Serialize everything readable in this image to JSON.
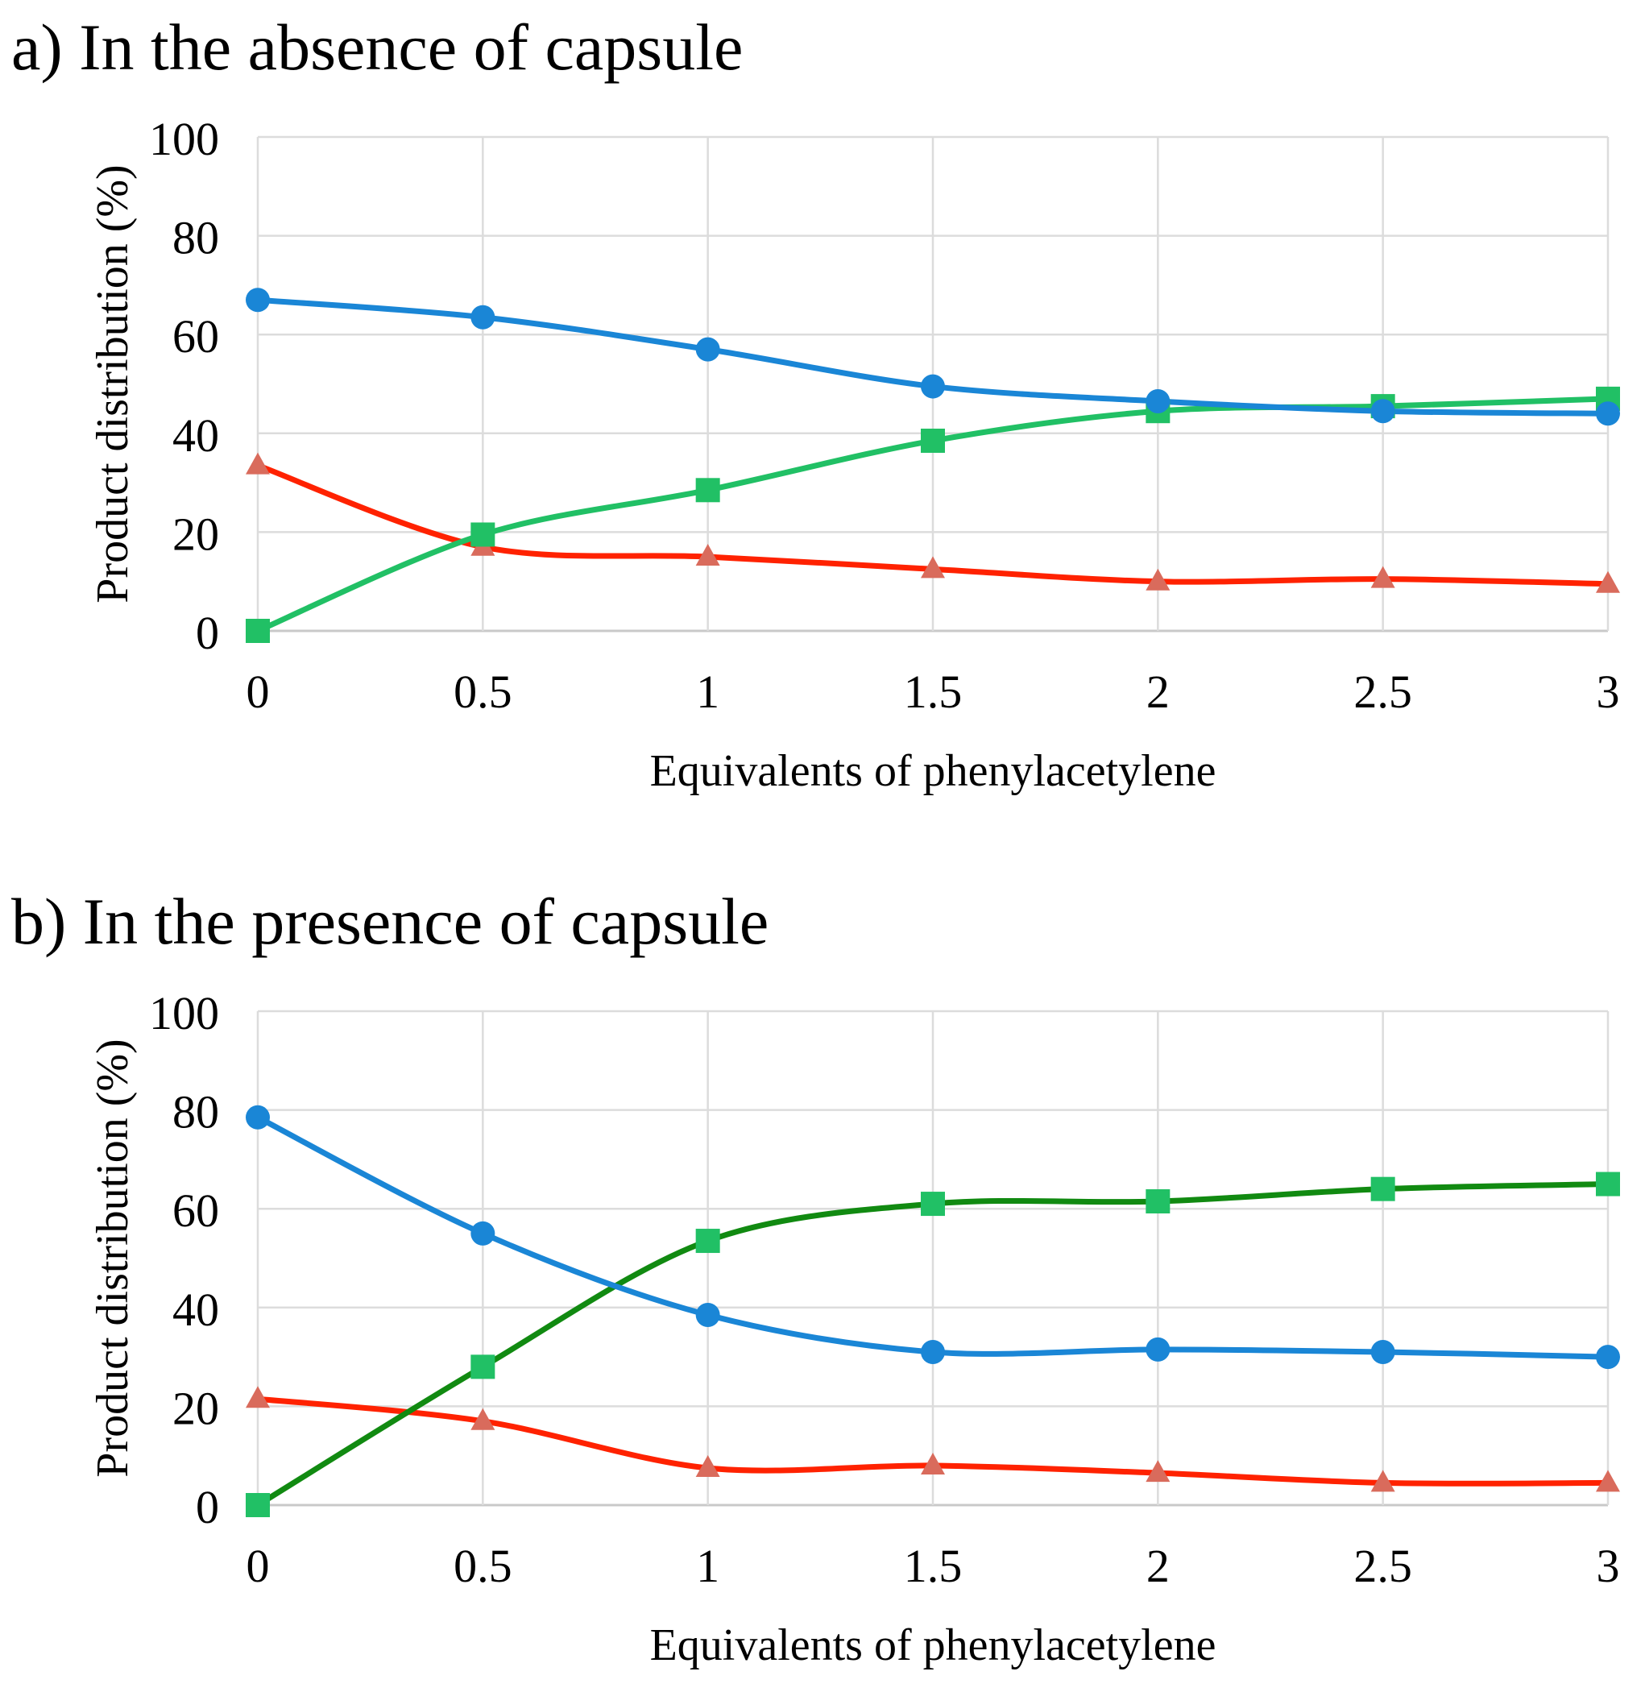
{
  "chart_data": [
    {
      "type": "line",
      "title": "a) In the absence of capsule",
      "xlabel": "Equivalents of phenylacetylene",
      "ylabel": "Product distribution (%)",
      "x": [
        0,
        0.5,
        1,
        1.5,
        2,
        2.5,
        3
      ],
      "x_tick_labels": [
        "0",
        "0.5",
        "1",
        "1.5",
        "2",
        "2.5",
        "3"
      ],
      "y_ticks": [
        0,
        20,
        40,
        60,
        80,
        100
      ],
      "y_tick_labels": [
        "0",
        "20",
        "40",
        "60",
        "80",
        "100"
      ],
      "xlim": [
        0,
        3
      ],
      "ylim": [
        0,
        100
      ],
      "grid": true,
      "smooth": true,
      "series": [
        {
          "name": "blue circles",
          "color": "#1a86d6",
          "marker": "circle",
          "marker_color": "#1a86d6",
          "values": [
            67,
            63.5,
            57,
            49.5,
            46.5,
            44.5,
            44
          ]
        },
        {
          "name": "green squares",
          "color": "#21c065",
          "marker": "square",
          "marker_color": "#21c065",
          "values": [
            0,
            19.5,
            28.5,
            38.5,
            44.5,
            45.5,
            47
          ]
        },
        {
          "name": "red triangles",
          "color": "#ff2200",
          "marker": "triangle",
          "marker_color": "#d96b5c",
          "values": [
            33.5,
            17,
            15,
            12.5,
            10,
            10.5,
            9.5
          ]
        }
      ]
    },
    {
      "type": "line",
      "title": "b) In the presence of capsule",
      "xlabel": "Equivalents of phenylacetylene",
      "ylabel": "Product distribution (%)",
      "x": [
        0,
        0.5,
        1,
        1.5,
        2,
        2.5,
        3
      ],
      "x_tick_labels": [
        "0",
        "0.5",
        "1",
        "1.5",
        "2",
        "2.5",
        "3"
      ],
      "y_ticks": [
        0,
        20,
        40,
        60,
        80,
        100
      ],
      "y_tick_labels": [
        "0",
        "20",
        "40",
        "60",
        "80",
        "100"
      ],
      "xlim": [
        0,
        3
      ],
      "ylim": [
        0,
        100
      ],
      "grid": true,
      "smooth": true,
      "series": [
        {
          "name": "blue circles",
          "color": "#1a86d6",
          "marker": "circle",
          "marker_color": "#1a86d6",
          "values": [
            78.5,
            55,
            38.5,
            31,
            31.5,
            31,
            30
          ]
        },
        {
          "name": "green squares",
          "color": "#118a11",
          "marker": "square",
          "marker_color": "#21c065",
          "values": [
            0,
            28,
            53.5,
            61,
            61.5,
            64,
            65
          ]
        },
        {
          "name": "red triangles",
          "color": "#ff2200",
          "marker": "triangle",
          "marker_color": "#d96b5c",
          "values": [
            21.5,
            17,
            7.5,
            8,
            6.5,
            4.5,
            4.5
          ]
        }
      ]
    }
  ]
}
